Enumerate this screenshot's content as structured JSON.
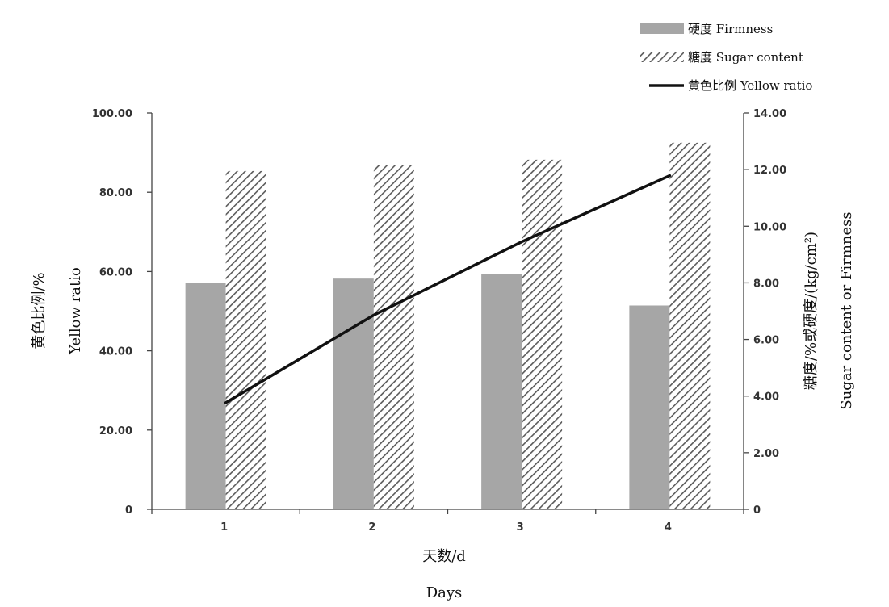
{
  "chart_data": {
    "type": "bar",
    "categories": [
      "1",
      "2",
      "3",
      "4"
    ],
    "series": [
      {
        "name": "硬度 Firmness",
        "kind": "bar",
        "axis": "right",
        "style": "solid",
        "color": "#a6a6a6",
        "values": [
          8.0,
          8.15,
          8.3,
          7.2
        ]
      },
      {
        "name": "糖度 Sugar content",
        "kind": "bar",
        "axis": "right",
        "style": "hatched",
        "color": "#5a5a5a",
        "values": [
          11.95,
          12.15,
          12.35,
          12.95
        ]
      },
      {
        "name": "黄色比例 Yellow ratio",
        "kind": "line",
        "axis": "left",
        "color": "#111111",
        "values": [
          26.9,
          49.0,
          67.5,
          84.2
        ]
      }
    ],
    "left_axis": {
      "label_lines": [
        "黄色比例/%",
        "Yellow ratio"
      ],
      "range": [
        0,
        100
      ],
      "ticks": [
        "0",
        "20.00",
        "40.00",
        "60.00",
        "80.00",
        "100.00"
      ]
    },
    "right_axis": {
      "label_lines": [
        "糖度/%或硬度/(kg/cm²)",
        "Sugar content or Firmness"
      ],
      "range": [
        0,
        14
      ],
      "ticks": [
        "0",
        "2.00",
        "4.00",
        "6.00",
        "8.00",
        "10.00",
        "12.00",
        "14.00"
      ]
    },
    "xlabel": "天数/d",
    "xlabel_en": "Days",
    "legend_position": "top-right",
    "grid": false
  }
}
